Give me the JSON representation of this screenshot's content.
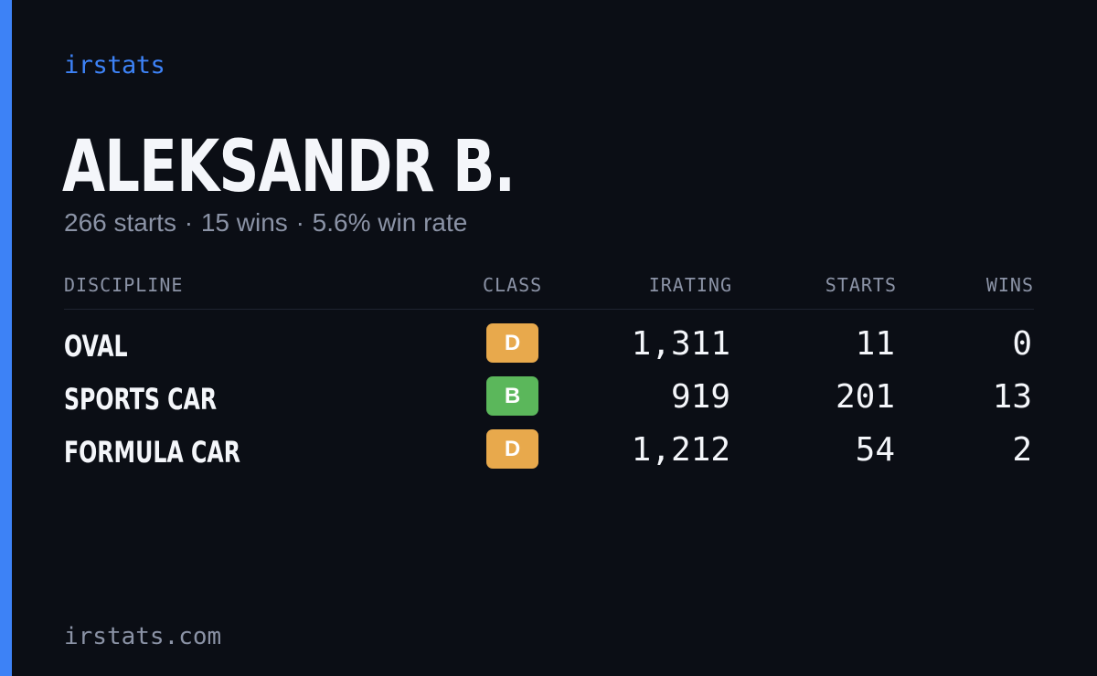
{
  "brand": "irstats",
  "player": {
    "name": "ALEKSANDR B.",
    "starts_text": "266 starts",
    "wins_text": "15 wins",
    "win_rate_text": "5.6% win rate",
    "separator": "·"
  },
  "table": {
    "headers": {
      "discipline": "DISCIPLINE",
      "class": "CLASS",
      "irating": "IRATING",
      "starts": "STARTS",
      "wins": "WINS"
    },
    "rows": [
      {
        "discipline": "OVAL",
        "class": "D",
        "class_color": "#e8a94c",
        "irating": "1,311",
        "starts": "11",
        "wins": "0"
      },
      {
        "discipline": "SPORTS CAR",
        "class": "B",
        "class_color": "#5bb75b",
        "irating": "919",
        "starts": "201",
        "wins": "13"
      },
      {
        "discipline": "FORMULA CAR",
        "class": "D",
        "class_color": "#e8a94c",
        "irating": "1,212",
        "starts": "54",
        "wins": "2"
      }
    ]
  },
  "footer": "irstats.com",
  "colors": {
    "accent": "#3d82f6",
    "background": "#0b0e15",
    "class_d": "#e8a94c",
    "class_b": "#5bb75b"
  }
}
